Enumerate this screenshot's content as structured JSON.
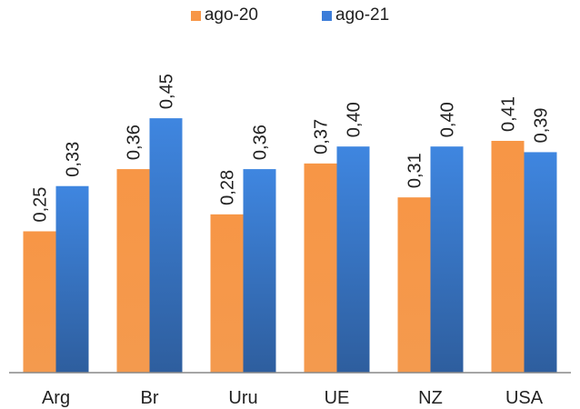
{
  "chart_data": {
    "type": "bar",
    "categories": [
      "Arg",
      "Br",
      "Uru",
      "UE",
      "NZ",
      "USA"
    ],
    "series": [
      {
        "name": "ago-20",
        "values": [
          0.25,
          0.36,
          0.28,
          0.37,
          0.31,
          0.41
        ],
        "labels": [
          "0,25",
          "0,36",
          "0,28",
          "0,37",
          "0,31",
          "0,41"
        ],
        "color": "#F79646"
      },
      {
        "name": "ago-21",
        "values": [
          0.33,
          0.45,
          0.36,
          0.4,
          0.4,
          0.39
        ],
        "labels": [
          "0,33",
          "0,45",
          "0,36",
          "0,40",
          "0,40",
          "0,39"
        ],
        "color": "#3C7DD9"
      }
    ],
    "ylim": [
      0,
      0.5
    ],
    "legend": "top-center",
    "grid": false
  }
}
